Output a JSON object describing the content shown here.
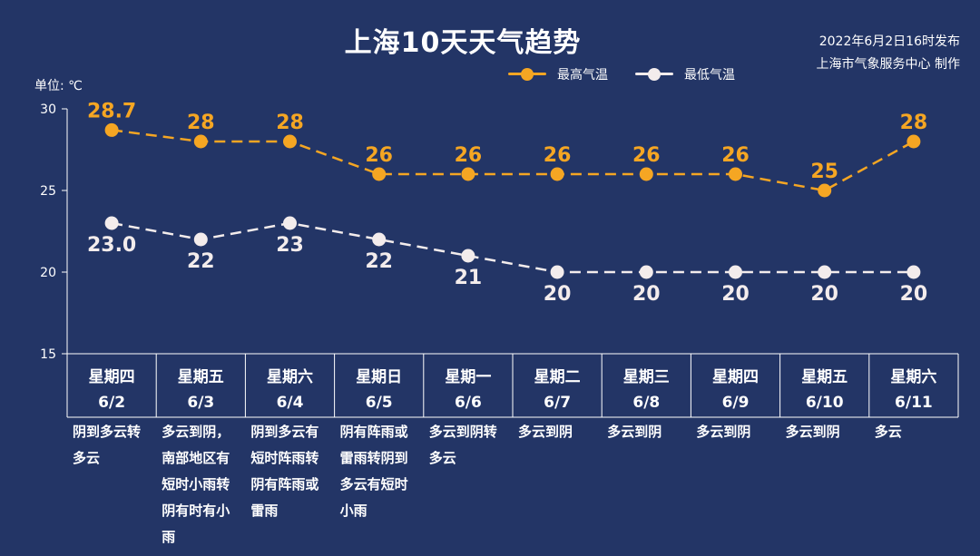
{
  "header": {
    "title": "上海10天天气趋势",
    "issue_time": "2022年6月2日16时发布",
    "issuer": "上海市气象服务中心 制作"
  },
  "unit_label": "单位: ℃",
  "colors": {
    "high": "#f5a623",
    "low": "#f3ecec",
    "background": "#233566"
  },
  "chart_data": {
    "type": "line",
    "ylim": [
      15,
      30
    ],
    "yticks": [
      "15",
      "20",
      "25",
      "30"
    ],
    "categories": [
      "星期四",
      "星期五",
      "星期六",
      "星期日",
      "星期一",
      "星期二",
      "星期三",
      "星期四",
      "星期五",
      "星期六"
    ],
    "dates": [
      "6/2",
      "6/3",
      "6/4",
      "6/5",
      "6/6",
      "6/7",
      "6/8",
      "6/9",
      "6/10",
      "6/11"
    ],
    "legend_position": "top-right",
    "series": [
      {
        "name": "最高气温",
        "values": [
          28.7,
          28,
          28,
          26,
          26,
          26,
          26,
          26,
          25,
          28
        ],
        "labels": [
          "28.7",
          "28",
          "28",
          "26",
          "26",
          "26",
          "26",
          "26",
          "25",
          "28"
        ]
      },
      {
        "name": "最低气温",
        "values": [
          23.0,
          22,
          23,
          22,
          21,
          20,
          20,
          20,
          20,
          20
        ],
        "labels": [
          "23.0",
          "22",
          "23",
          "22",
          "21",
          "20",
          "20",
          "20",
          "20",
          "20"
        ]
      }
    ],
    "descriptions": [
      "阴到多云转多云",
      "多云到阴，南部地区有短时小雨转阴有时有小雨",
      "阴到多云有短时阵雨转阴有阵雨或雷雨",
      "阴有阵雨或雷雨转阴到多云有短时小雨",
      "多云到阴转多云",
      "多云到阴",
      "多云到阴",
      "多云到阴",
      "多云到阴",
      "多云"
    ]
  }
}
